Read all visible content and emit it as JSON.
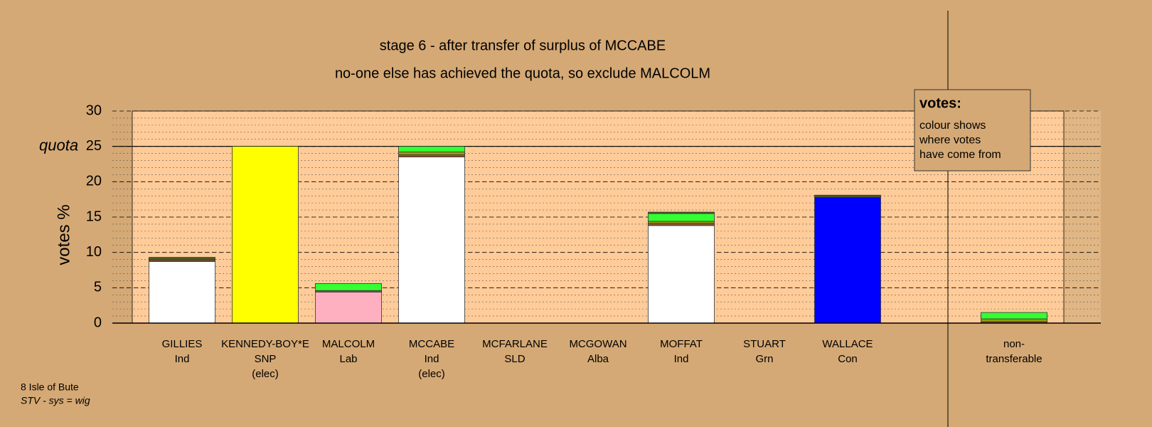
{
  "chart_data": {
    "type": "stacked_bar",
    "title": "stage 6 - after transfer of surplus of MCCABE",
    "subtitle": "no-one else has achieved the quota, so exclude MALCOLM",
    "y_label": "votes %",
    "quota": 25,
    "quota_label": "quota",
    "categories": [
      [
        "GILLIES",
        "Ind"
      ],
      [
        "KENNEDY-BOY*E",
        "SNP",
        "(elec)"
      ],
      [
        "MALCOLM",
        "Lab"
      ],
      [
        "MCCABE",
        "Ind",
        "(elec)"
      ],
      [
        "MCFARLANE",
        "SLD"
      ],
      [
        "MCGOWAN",
        "Alba"
      ],
      [
        "MOFFAT",
        "Ind"
      ],
      [
        "STUART",
        "Grn"
      ],
      [
        "WALLACE",
        "Con"
      ],
      [
        "non-",
        "transferable"
      ]
    ],
    "series": [
      {
        "colors": [
          "#ffffff",
          "#ffff00",
          "#ffb0c0",
          "#ffffff",
          "#ffffff",
          "#ffffff",
          "#ffffff",
          "#33cc33",
          "#0000ff",
          "#ffffff"
        ],
        "values": [
          8.7,
          25,
          4.4,
          23.5,
          0,
          0,
          13.8,
          0,
          17.8,
          0
        ]
      },
      {
        "color": "#8b5a2b",
        "values": [
          0.2,
          0,
          0.2,
          0.3,
          0,
          0,
          0.3,
          0,
          0,
          0.2
        ]
      },
      {
        "color": "#9a9a10",
        "values": [
          0,
          0,
          0,
          0.4,
          0,
          0,
          0.3,
          0,
          0,
          0.4
        ]
      },
      {
        "color": "#33ff33",
        "values": [
          0,
          0,
          1.0,
          0.8,
          0,
          0,
          1.1,
          0,
          0,
          0.9
        ]
      },
      {
        "color": "#4b5a20",
        "values": [
          0.4,
          0,
          0,
          0,
          0,
          0,
          0.2,
          0,
          0.3,
          0
        ]
      }
    ],
    "ylim": [
      0,
      30
    ],
    "yticks": [
      0,
      5,
      10,
      15,
      20,
      25,
      30
    ],
    "grid": true,
    "minor_grid": true,
    "legend_title": "votes:",
    "legend_lines": [
      "colour shows",
      "where votes",
      "have come from"
    ],
    "footer": [
      "8 Isle of Bute",
      "STV - sys = wig"
    ]
  }
}
